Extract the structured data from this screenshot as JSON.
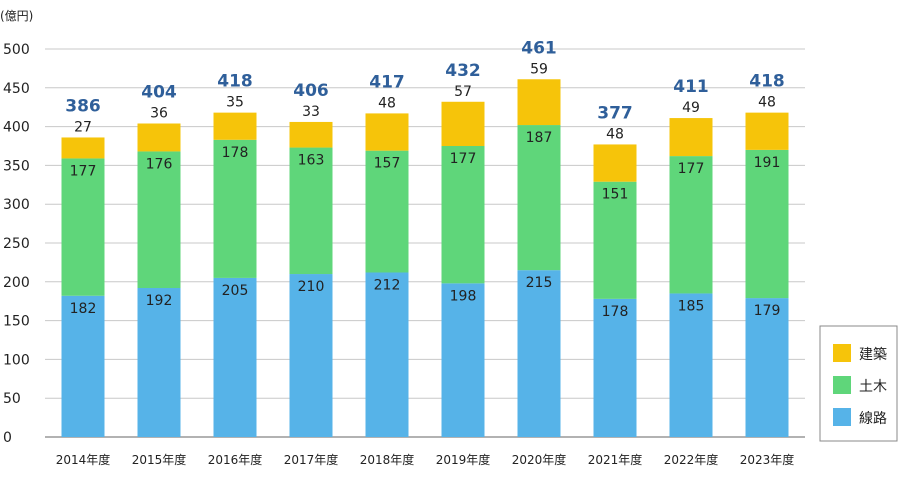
{
  "chart_data": {
    "type": "bar",
    "stacked": true,
    "unit_label": "(億円)",
    "ylim": [
      0,
      500
    ],
    "yticks": [
      "0",
      "50",
      "100",
      "150",
      "200",
      "250",
      "300",
      "350",
      "400",
      "450",
      "500"
    ],
    "grid": true,
    "legend_position": "bottom-right",
    "categories": [
      "2014年度",
      "2015年度",
      "2016年度",
      "2017年度",
      "2018年度",
      "2019年度",
      "2020年度",
      "2021年度",
      "2022年度",
      "2023年度"
    ],
    "series": [
      {
        "name": "線路",
        "color": "#56b3e8",
        "values": [
          182,
          192,
          205,
          210,
          212,
          198,
          215,
          178,
          185,
          179
        ]
      },
      {
        "name": "土木",
        "color": "#5fd67a",
        "values": [
          177,
          176,
          178,
          163,
          157,
          177,
          187,
          151,
          177,
          191
        ]
      },
      {
        "name": "建築",
        "color": "#f6c40a",
        "values": [
          27,
          36,
          35,
          33,
          48,
          57,
          59,
          48,
          49,
          48
        ]
      }
    ],
    "totals": [
      "386",
      "404",
      "418",
      "406",
      "417",
      "432",
      "461",
      "377",
      "411",
      "418"
    ],
    "total_color": "#2f5f9a"
  }
}
